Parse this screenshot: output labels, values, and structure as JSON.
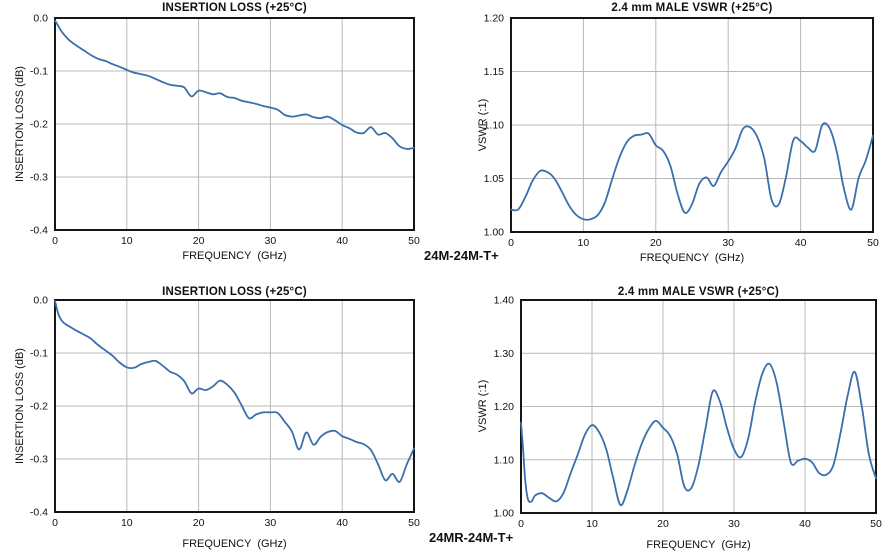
{
  "part_labels": {
    "top": "24M-24M-T+",
    "bottom": "24MR-24M-T+"
  },
  "chart_data": [
    {
      "type": "line",
      "title": "INSERTION LOSS (+25°C)",
      "xlabel": "FREQUENCY  (GHz)",
      "ylabel": "INSERTION LOSS (dB)",
      "xlim": [
        0,
        50
      ],
      "ylim": [
        -0.4,
        0.0
      ],
      "xticks": [
        0,
        10,
        20,
        30,
        40,
        50
      ],
      "xtick_labels": [
        "0",
        "10",
        "20",
        "30",
        "40",
        "50"
      ],
      "yticks": [
        0.0,
        -0.1,
        -0.2,
        -0.3,
        -0.4
      ],
      "ytick_labels": [
        "0.0",
        "-0.1",
        "-0.2",
        "-0.3",
        "-0.4"
      ],
      "grid": true,
      "line_color": "#3a6fad",
      "x": [
        0,
        0.5,
        1,
        2,
        3,
        4,
        5,
        6,
        7,
        8,
        9,
        10,
        11,
        12,
        13,
        14,
        15,
        16,
        17,
        18,
        19,
        20,
        21,
        22,
        23,
        24,
        25,
        26,
        27,
        28,
        29,
        30,
        31,
        32,
        33,
        34,
        35,
        36,
        37,
        38,
        39,
        40,
        41,
        42,
        43,
        44,
        45,
        46,
        47,
        48,
        49,
        50
      ],
      "y": [
        -0.005,
        -0.016,
        -0.027,
        -0.042,
        -0.052,
        -0.061,
        -0.07,
        -0.077,
        -0.081,
        -0.087,
        -0.092,
        -0.098,
        -0.103,
        -0.106,
        -0.109,
        -0.115,
        -0.121,
        -0.126,
        -0.128,
        -0.131,
        -0.148,
        -0.137,
        -0.14,
        -0.144,
        -0.142,
        -0.149,
        -0.151,
        -0.156,
        -0.159,
        -0.162,
        -0.166,
        -0.169,
        -0.173,
        -0.183,
        -0.186,
        -0.184,
        -0.182,
        -0.187,
        -0.189,
        -0.186,
        -0.193,
        -0.202,
        -0.208,
        -0.216,
        -0.217,
        -0.206,
        -0.22,
        -0.217,
        -0.227,
        -0.242,
        -0.247,
        -0.245
      ]
    },
    {
      "type": "line",
      "title": "2.4 mm MALE VSWR (+25°C)",
      "xlabel": "FREQUENCY  (GHz)",
      "ylabel": "VSWR (:1)",
      "xlim": [
        0,
        50
      ],
      "ylim": [
        1.0,
        1.2
      ],
      "xticks": [
        0,
        10,
        20,
        30,
        40,
        50
      ],
      "xtick_labels": [
        "0",
        "10",
        "20",
        "30",
        "40",
        "50"
      ],
      "yticks": [
        1.2,
        1.15,
        1.1,
        1.05,
        1.0
      ],
      "ytick_labels": [
        "1.20",
        "1.15",
        "1.10",
        "1.05",
        "1.00"
      ],
      "grid": true,
      "line_color": "#3a6fad",
      "x": [
        0,
        1,
        2,
        3,
        4,
        5,
        6,
        7,
        8,
        9,
        10,
        11,
        12,
        13,
        14,
        15,
        16,
        17,
        18,
        19,
        20,
        21,
        22,
        23,
        24,
        25,
        26,
        27,
        28,
        29,
        30,
        31,
        32,
        33,
        34,
        35,
        36,
        37,
        38,
        39,
        40,
        41,
        42,
        43,
        44,
        45,
        46,
        47,
        48,
        49,
        50
      ],
      "y": [
        1.021,
        1.021,
        1.033,
        1.048,
        1.057,
        1.056,
        1.05,
        1.038,
        1.025,
        1.016,
        1.012,
        1.012,
        1.016,
        1.028,
        1.05,
        1.07,
        1.084,
        1.09,
        1.091,
        1.092,
        1.081,
        1.076,
        1.062,
        1.036,
        1.018,
        1.026,
        1.045,
        1.051,
        1.043,
        1.056,
        1.066,
        1.078,
        1.096,
        1.098,
        1.089,
        1.068,
        1.03,
        1.026,
        1.052,
        1.086,
        1.085,
        1.079,
        1.076,
        1.1,
        1.097,
        1.075,
        1.04,
        1.021,
        1.05,
        1.067,
        1.09
      ]
    },
    {
      "type": "line",
      "title": "INSERTION LOSS (+25°C)",
      "xlabel": "FREQUENCY  (GHz)",
      "ylabel": "INSERTION LOSS (dB)",
      "xlim": [
        0,
        50
      ],
      "ylim": [
        -0.4,
        0.0
      ],
      "xticks": [
        0,
        10,
        20,
        30,
        40,
        50
      ],
      "xtick_labels": [
        "0",
        "10",
        "20",
        "30",
        "40",
        "50"
      ],
      "yticks": [
        0.0,
        -0.1,
        -0.2,
        -0.3,
        -0.4
      ],
      "ytick_labels": [
        "0.0",
        "-0.1",
        "-0.2",
        "-0.3",
        "-0.4"
      ],
      "grid": true,
      "line_color": "#3a6fad",
      "x": [
        0,
        0.5,
        1,
        1.5,
        2,
        3,
        4,
        5,
        6,
        7,
        8,
        9,
        10,
        11,
        12,
        13,
        14,
        15,
        16,
        17,
        18,
        19,
        20,
        21,
        22,
        23,
        24,
        25,
        26,
        27,
        28,
        29,
        30,
        31,
        32,
        33,
        34,
        35,
        36,
        37,
        38,
        39,
        40,
        41,
        42,
        43,
        44,
        45,
        46,
        47,
        48,
        49,
        50
      ],
      "y": [
        -0.002,
        -0.028,
        -0.04,
        -0.046,
        -0.05,
        -0.058,
        -0.065,
        -0.073,
        -0.085,
        -0.095,
        -0.105,
        -0.118,
        -0.127,
        -0.128,
        -0.121,
        -0.117,
        -0.115,
        -0.124,
        -0.135,
        -0.141,
        -0.153,
        -0.176,
        -0.167,
        -0.17,
        -0.163,
        -0.152,
        -0.16,
        -0.175,
        -0.199,
        -0.223,
        -0.216,
        -0.212,
        -0.212,
        -0.213,
        -0.23,
        -0.248,
        -0.282,
        -0.25,
        -0.273,
        -0.258,
        -0.249,
        -0.247,
        -0.257,
        -0.262,
        -0.268,
        -0.272,
        -0.283,
        -0.31,
        -0.34,
        -0.328,
        -0.343,
        -0.31,
        -0.28
      ]
    },
    {
      "type": "line",
      "title": "2.4 mm MALE VSWR (+25°C)",
      "xlabel": "FREQUENCY  (GHz)",
      "ylabel": "VSWR (:1)",
      "xlim": [
        0,
        50
      ],
      "ylim": [
        1.0,
        1.4
      ],
      "xticks": [
        0,
        10,
        20,
        30,
        40,
        50
      ],
      "xtick_labels": [
        "0",
        "10",
        "20",
        "30",
        "40",
        "50"
      ],
      "yticks": [
        1.4,
        1.3,
        1.2,
        1.1,
        1.0
      ],
      "ytick_labels": [
        "1.40",
        "1.30",
        "1.20",
        "1.10",
        "1.00"
      ],
      "grid": true,
      "line_color": "#3a6fad",
      "x": [
        0,
        0.3,
        0.6,
        1,
        1.5,
        2,
        3,
        4,
        5,
        6,
        7,
        8,
        9,
        10,
        11,
        12,
        13,
        14,
        15,
        16,
        17,
        18,
        19,
        20,
        21,
        22,
        23,
        24,
        25,
        26,
        27,
        28,
        29,
        30,
        31,
        32,
        33,
        34,
        35,
        36,
        37,
        38,
        39,
        40,
        41,
        42,
        43,
        44,
        45,
        46,
        47,
        48,
        49,
        50
      ],
      "y": [
        1.17,
        1.12,
        1.06,
        1.025,
        1.022,
        1.033,
        1.037,
        1.028,
        1.022,
        1.038,
        1.075,
        1.11,
        1.147,
        1.165,
        1.152,
        1.12,
        1.065,
        1.015,
        1.043,
        1.09,
        1.13,
        1.158,
        1.173,
        1.16,
        1.145,
        1.11,
        1.05,
        1.047,
        1.09,
        1.16,
        1.228,
        1.21,
        1.16,
        1.12,
        1.105,
        1.14,
        1.21,
        1.262,
        1.28,
        1.245,
        1.17,
        1.095,
        1.098,
        1.102,
        1.095,
        1.075,
        1.072,
        1.09,
        1.15,
        1.22,
        1.265,
        1.2,
        1.11,
        1.065
      ]
    }
  ]
}
